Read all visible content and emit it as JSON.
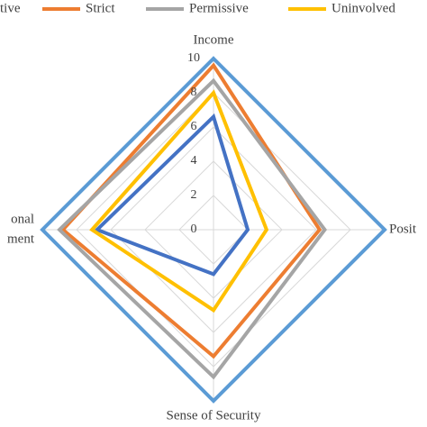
{
  "chart_data": {
    "type": "radar",
    "categories": [
      "Income",
      "Posit",
      "Sense of Security",
      [
        "onal",
        "ment"
      ]
    ],
    "series": [
      {
        "name": "tive",
        "color": "#4472c4",
        "values": [
          6.6,
          2.0,
          2.6,
          6.8
        ]
      },
      {
        "name": "Strict",
        "color": "#ed7d31",
        "values": [
          9.6,
          6.2,
          7.4,
          8.8
        ]
      },
      {
        "name": "Permissive",
        "color": "#a5a5a5",
        "values": [
          8.7,
          6.5,
          8.6,
          9.0
        ]
      },
      {
        "name": "Uninvolved",
        "color": "#ffc000",
        "values": [
          8.0,
          3.1,
          4.7,
          7.1
        ]
      },
      {
        "color": "#5b9bd5",
        "values": [
          10,
          10,
          10,
          10
        ]
      }
    ],
    "ylim": [
      0,
      10
    ],
    "yticks": [
      0,
      2,
      4,
      6,
      8,
      10
    ],
    "grid": true
  }
}
